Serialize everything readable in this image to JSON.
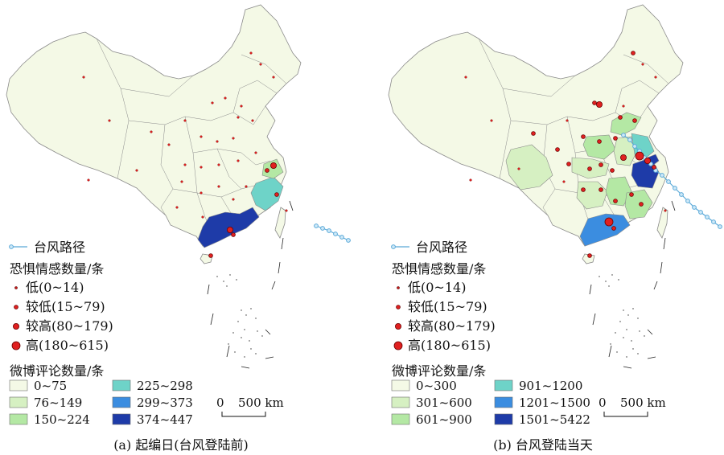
{
  "colors": {
    "land": "#f4f9e6",
    "border": "#8a8a8a",
    "track": "#5aa9d8",
    "track_fill": "#cfe9f8",
    "dot": "#e02020",
    "dot_stroke": "#6a0000"
  },
  "icons": [
    "typhoon-track-icon",
    "fear-dot-icon",
    "legend-swatch-icon",
    "scale-bar-icon"
  ],
  "panels": [
    {
      "caption": "(a) 起编日(台风登陆前)",
      "legend": {
        "track_label": "台风路径",
        "fear_title": "恐惧情感数量/条",
        "fear_classes": [
          {
            "label": "低(0~14)",
            "size": 1
          },
          {
            "label": "较低(15~79)",
            "size": 2
          },
          {
            "label": "较高(80~179)",
            "size": 3
          },
          {
            "label": "高(180~615)",
            "size": 4
          }
        ],
        "weibo_title": "微博评论数量/条",
        "weibo_classes": [
          {
            "label": "0~75",
            "color": "#f4f9e6"
          },
          {
            "label": "76~149",
            "color": "#d6f0c2"
          },
          {
            "label": "150~224",
            "color": "#b4e8a4"
          },
          {
            "label": "225~298",
            "color": "#6ed3c8"
          },
          {
            "label": "299~373",
            "color": "#3b8de0"
          },
          {
            "label": "374~447",
            "color": "#1e3ba8"
          }
        ]
      },
      "scale": {
        "zero": "0",
        "label": "500 km"
      }
    },
    {
      "caption": "(b) 台风登陆当天",
      "legend": {
        "track_label": "台风路径",
        "fear_title": "恐惧情感数量/条",
        "fear_classes": [
          {
            "label": "低(0~14)",
            "size": 1
          },
          {
            "label": "较低(15~79)",
            "size": 2
          },
          {
            "label": "较高(80~179)",
            "size": 3
          },
          {
            "label": "高(180~615)",
            "size": 4
          }
        ],
        "weibo_title": "微博评论数量/条",
        "weibo_classes": [
          {
            "label": "0~300",
            "color": "#f4f9e6"
          },
          {
            "label": "301~600",
            "color": "#d6f0c2"
          },
          {
            "label": "601~900",
            "color": "#b4e8a4"
          },
          {
            "label": "901~1200",
            "color": "#6ed3c8"
          },
          {
            "label": "1201~1500",
            "color": "#3b8de0"
          },
          {
            "label": "1501~5422",
            "color": "#1e3ba8"
          }
        ]
      },
      "scale": {
        "zero": "0",
        "label": "500 km"
      }
    }
  ]
}
